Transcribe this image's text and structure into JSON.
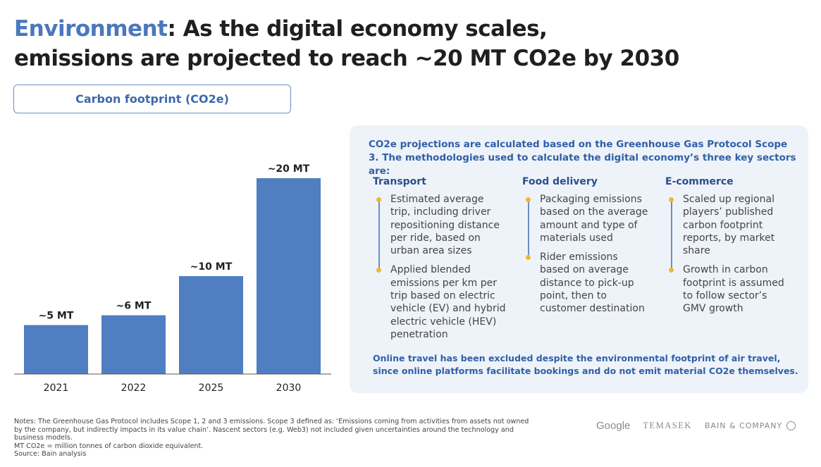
{
  "title": {
    "accent": "Environment",
    "rest": ": As the digital economy scales,",
    "line2": "emissions are projected to reach ~20 MT CO2e by 2030"
  },
  "pill": "Carbon footprint (CO2e)",
  "chart_data": {
    "type": "bar",
    "categories": [
      "2021",
      "2022",
      "2025",
      "2030"
    ],
    "values": [
      5,
      6,
      10,
      20
    ],
    "data_labels": [
      "~5 MT",
      "~6 MT",
      "~10 MT",
      "~20 MT"
    ],
    "ylim": [
      0,
      20
    ],
    "bar_color": "#4f7ec1",
    "grid": false
  },
  "panel": {
    "intro": "CO2e projections are calculated based on the Greenhouse Gas Protocol Scope 3. The methodologies used to calculate the digital economy’s three key sectors are:",
    "columns": [
      {
        "heading": "Transport",
        "items": [
          "Estimated average trip, including driver repositioning distance per ride, based on urban area sizes",
          "Applied blended emissions per km per trip based on electric vehicle (EV) and hybrid electric vehicle (HEV) penetration"
        ]
      },
      {
        "heading": "Food delivery",
        "items": [
          "Packaging emissions based on the average amount and type of materials used",
          "Rider emissions based on average distance to pick-up point, then to customer destination"
        ]
      },
      {
        "heading": "E-commerce",
        "items": [
          "Scaled up regional players’ published carbon footprint reports, by market share",
          "Growth in carbon footprint is assumed to follow sector’s GMV growth"
        ]
      }
    ],
    "outro": "Online travel has been excluded despite the environmental footprint of air travel, since online platforms facilitate bookings and do not emit material CO2e themselves."
  },
  "notes": [
    "Notes: The Greenhouse Gas Protocol includes Scope 1, 2 and 3 emissions. Scope 3 defined as: ‘Emissions coming from activities from assets not owned by the company, but indirectly impacts in its value chain’. Nascent sectors (e.g. Web3) not included given uncertainties around the technology and business models.",
    "MT CO2e = million tonnes of carbon dioxide equivalent.",
    "Source:  Bain analysis"
  ],
  "logos": [
    "Google",
    "TEMASEK",
    "BAIN & COMPANY"
  ]
}
